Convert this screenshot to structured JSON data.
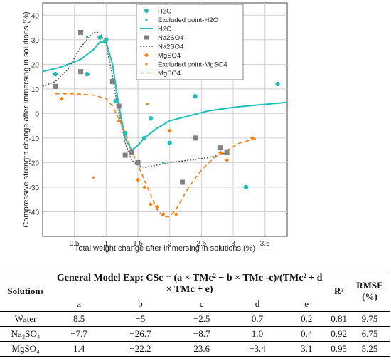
{
  "chart_data": {
    "type": "scatter",
    "xlabel": "Total weight change after immersing in solutions (%)",
    "ylabel": "Compressive strength change after immersing in solutions (%)",
    "xlim": [
      0,
      3.85
    ],
    "ylim": [
      -50,
      45
    ],
    "xticks": [
      "0.5",
      "1",
      "1.5",
      "2",
      "2.5",
      "3",
      "3.5"
    ],
    "yticks": [
      "40",
      "30",
      "20",
      "10",
      "0",
      "-10",
      "-20",
      "-30",
      "-40"
    ],
    "grid": true,
    "legend_position": "top-center",
    "series": [
      {
        "name": "H2O",
        "kind": "points",
        "marker": "circle",
        "color": "#1fbfb8",
        "x": [
          0.2,
          0.7,
          0.9,
          1.0,
          1.15,
          1.3,
          1.6,
          1.7,
          2.0,
          2.4,
          3.2,
          3.7
        ],
        "y": [
          16,
          16,
          31,
          30,
          5,
          -8,
          -10,
          -2,
          -12,
          7,
          -30,
          12
        ]
      },
      {
        "name": "Excluded point-H2O",
        "kind": "points",
        "marker": "square",
        "color": "#1fbfb8",
        "x": [
          0.7,
          1.9
        ],
        "y": [
          31,
          -20
        ]
      },
      {
        "name": "H2O",
        "kind": "curve",
        "style": "solid",
        "color": "#1fbfb8",
        "x": [
          0,
          0.3,
          0.6,
          0.8,
          0.9,
          1.0,
          1.1,
          1.2,
          1.3,
          1.4,
          1.5,
          1.6,
          1.8,
          2.0,
          2.3,
          2.6,
          3.0,
          3.4,
          3.85
        ],
        "y": [
          17,
          19,
          22,
          26,
          29,
          29,
          20,
          3,
          -10,
          -15,
          -13,
          -10,
          -6,
          -3,
          -1,
          1,
          2.5,
          3.5,
          4.5
        ]
      },
      {
        "name": "Na2SO4",
        "kind": "points",
        "marker": "square",
        "color": "#808080",
        "x": [
          0.2,
          0.6,
          0.6,
          1.1,
          1.2,
          1.3,
          1.4,
          1.5,
          2.2,
          2.4,
          2.8,
          2.9
        ],
        "y": [
          11,
          33,
          17,
          13,
          3,
          -17,
          -16,
          -20,
          -28,
          -10,
          -14,
          -16
        ]
      },
      {
        "name": "Na2SO4",
        "kind": "curve",
        "style": "dotted",
        "color": "#606060",
        "x": [
          0,
          0.2,
          0.4,
          0.6,
          0.8,
          0.9,
          1.0,
          1.1,
          1.2,
          1.3,
          1.4,
          1.5,
          1.6,
          1.8,
          2.0,
          2.3,
          2.6,
          2.9
        ],
        "y": [
          11,
          13,
          18,
          27,
          33,
          33,
          28,
          15,
          0,
          -12,
          -19,
          -21,
          -22,
          -21,
          -20,
          -19,
          -18,
          -16
        ]
      },
      {
        "name": "MgSO4",
        "kind": "points",
        "marker": "diamond",
        "color": "#ff7f0e",
        "x": [
          0.3,
          1.2,
          1.5,
          1.6,
          1.7,
          1.8,
          1.9,
          2.0,
          2.1,
          2.8,
          2.9,
          3.3
        ],
        "y": [
          6,
          -3,
          -27,
          -30,
          -37,
          -38,
          -41,
          -7,
          -41,
          -16,
          -19,
          -10
        ]
      },
      {
        "name": "Excluded point-MgSO4",
        "kind": "points",
        "marker": "square",
        "color": "#ff7f0e",
        "x": [
          0.8,
          1.65
        ],
        "y": [
          -26,
          4
        ]
      },
      {
        "name": "MgSO4",
        "kind": "curve",
        "style": "dashed",
        "color": "#ff7f0e",
        "x": [
          0.2,
          0.5,
          0.8,
          1.0,
          1.1,
          1.2,
          1.3,
          1.4,
          1.5,
          1.6,
          1.7,
          1.8,
          1.9,
          2.0,
          2.1,
          2.3,
          2.5,
          2.7,
          2.9,
          3.1,
          3.4
        ],
        "y": [
          8,
          8,
          7.5,
          6,
          3,
          -2,
          -8,
          -15,
          -21,
          -27,
          -33,
          -39,
          -42,
          -42,
          -39,
          -30,
          -23,
          -18,
          -15,
          -12,
          -10
        ]
      }
    ]
  },
  "table": {
    "col_solutions": "Solutions",
    "model_caption": "General Model Exp: CSc = (a × TMc² − b × TMc -c)/(TMc² + d × TMc + e)",
    "col_r2": "R²",
    "col_rmse": "RMSE (%)",
    "params": [
      "a",
      "b",
      "c",
      "d",
      "e"
    ],
    "rows": [
      {
        "name": "Water",
        "a": "8.5",
        "b": "−5",
        "c": "−2.5",
        "d": "0.7",
        "e": "0.2",
        "r2": "0.81",
        "rmse": "9.75"
      },
      {
        "name": "Na₂SO₄",
        "a": "−7.7",
        "b": "−26.7",
        "c": "−8.7",
        "d": "1.0",
        "e": "0.4",
        "r2": "0.92",
        "rmse": "6.75"
      },
      {
        "name": "MgSO₄",
        "a": "1.4",
        "b": "−22.2",
        "c": "23.6",
        "d": "−3.4",
        "e": "3.1",
        "r2": "0.95",
        "rmse": "5.25"
      }
    ]
  }
}
